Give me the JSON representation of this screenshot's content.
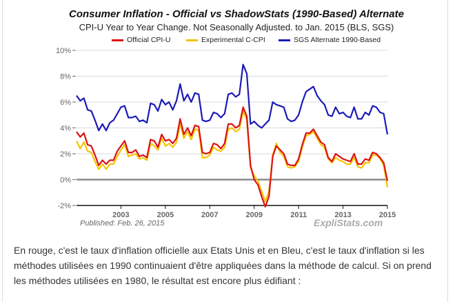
{
  "chart_data": {
    "type": "line",
    "title": "Consumer Inflation - Official vs ShadowStats (1990-Based) Alternate",
    "subtitle": "CPI-U Year to Year Change. Not Seasonally Adjusted. to Jan. 2015  (BLS, SGS)",
    "xlabel": "",
    "ylabel": "",
    "xlim": [
      2001.0,
      2015.0
    ],
    "ylim": [
      -2,
      10
    ],
    "grid": true,
    "legend_placement": "top",
    "yticks": [
      {
        "value": 10,
        "label": "10%"
      },
      {
        "value": 8,
        "label": "8%"
      },
      {
        "value": 6,
        "label": "6%"
      },
      {
        "value": 4,
        "label": "4%"
      },
      {
        "value": 2,
        "label": "2%"
      },
      {
        "value": 0,
        "label": "0%"
      },
      {
        "value": -2,
        "label": "-2%"
      }
    ],
    "xticks": [
      {
        "value": 2003,
        "label": "2003"
      },
      {
        "value": 2005,
        "label": "2005"
      },
      {
        "value": 2007,
        "label": "2007"
      },
      {
        "value": 2009,
        "label": "2009"
      },
      {
        "value": 2011,
        "label": "2011"
      },
      {
        "value": 2013,
        "label": "2013"
      },
      {
        "value": 2015,
        "label": "2015"
      }
    ],
    "x_step_years": 0.16667,
    "series": [
      {
        "name": "Official CPI-U",
        "color": "#dd1111",
        "values": [
          3.7,
          3.3,
          3.6,
          2.7,
          2.6,
          1.9,
          1.1,
          1.5,
          1.2,
          1.5,
          1.5,
          2.2,
          2.6,
          3.0,
          2.1,
          2.1,
          2.3,
          1.8,
          1.9,
          1.7,
          3.1,
          3.0,
          2.5,
          3.5,
          3.0,
          3.1,
          2.8,
          3.2,
          4.7,
          3.5,
          4.0,
          3.4,
          4.2,
          4.1,
          2.1,
          2.0,
          2.1,
          2.8,
          2.7,
          2.4,
          2.8,
          4.3,
          4.3,
          4.0,
          4.2,
          5.6,
          4.9,
          1.1,
          0.0,
          -0.4,
          -1.3,
          -2.1,
          -1.3,
          1.8,
          2.6,
          2.3,
          2.0,
          1.2,
          1.1,
          1.1,
          1.6,
          2.7,
          3.6,
          3.6,
          3.9,
          3.4,
          2.9,
          2.7,
          1.7,
          1.4,
          2.0,
          1.8,
          1.6,
          1.5,
          1.4,
          2.0,
          1.2,
          1.2,
          1.6,
          1.5,
          2.1,
          2.0,
          1.7,
          1.3,
          -0.1
        ]
      },
      {
        "name": "Experimental C-CPI",
        "color": "#f5c400",
        "values": [
          3.0,
          2.4,
          2.9,
          2.2,
          2.1,
          1.4,
          0.8,
          1.2,
          0.8,
          1.2,
          1.2,
          1.8,
          2.3,
          2.7,
          1.8,
          1.9,
          2.0,
          1.6,
          1.7,
          1.5,
          2.8,
          2.6,
          2.3,
          3.2,
          2.6,
          2.8,
          2.5,
          2.9,
          4.3,
          3.2,
          3.7,
          3.1,
          3.9,
          3.8,
          1.7,
          1.7,
          1.9,
          2.5,
          2.3,
          2.2,
          2.5,
          3.9,
          4.0,
          3.7,
          3.9,
          5.3,
          4.6,
          0.9,
          0.3,
          -0.1,
          -0.9,
          -1.7,
          -0.9,
          1.9,
          2.8,
          2.1,
          1.8,
          1.0,
          0.9,
          1.0,
          1.4,
          2.5,
          3.4,
          3.5,
          3.7,
          3.2,
          2.7,
          2.5,
          1.6,
          1.3,
          1.7,
          1.5,
          1.4,
          1.2,
          1.2,
          1.7,
          1.0,
          0.9,
          1.3,
          1.3,
          1.9,
          1.9,
          1.6,
          1.1,
          -0.6
        ]
      },
      {
        "name": "SGS  Alternate 1990-Based",
        "color": "#1a1ab8",
        "values": [
          6.5,
          6.1,
          6.3,
          5.4,
          5.3,
          4.6,
          3.8,
          4.3,
          3.8,
          4.4,
          4.6,
          5.1,
          5.6,
          5.7,
          4.8,
          4.8,
          4.9,
          4.5,
          4.6,
          4.4,
          5.9,
          5.8,
          5.3,
          6.2,
          5.8,
          6.0,
          5.4,
          6.1,
          7.4,
          6.1,
          6.6,
          6.0,
          6.7,
          6.6,
          4.6,
          4.5,
          4.6,
          5.2,
          5.1,
          4.8,
          5.1,
          6.6,
          6.7,
          6.4,
          6.6,
          8.9,
          8.2,
          4.3,
          4.5,
          4.2,
          4.0,
          4.3,
          4.6,
          6.0,
          5.8,
          5.7,
          5.6,
          4.7,
          4.5,
          4.6,
          5.0,
          6.0,
          6.8,
          7.0,
          7.2,
          6.5,
          6.1,
          5.8,
          5.0,
          4.9,
          5.6,
          5.1,
          5.2,
          4.9,
          4.8,
          5.6,
          4.7,
          4.7,
          5.2,
          5.0,
          5.7,
          5.6,
          5.2,
          5.1,
          3.5
        ]
      }
    ]
  },
  "legend": [
    {
      "label": "Official CPI-U",
      "color": "#dd1111"
    },
    {
      "label": "Experimental C-CPI",
      "color": "#f5c400"
    },
    {
      "label": "SGS  Alternate 1990-Based",
      "color": "#1a1ab8"
    }
  ],
  "published": "Published: Feb. 26, 2015",
  "brand": "ExpliStats.com",
  "article": {
    "paragraph": "En rouge, c'est le taux d'inflation officielle aux Etats Unis et en Bleu, c'est le taux d'inflation si les méthodes utilisées en 1990 continuaient d'être appliquées dans la méthode de calcul. Si on prend les méthodes utilisées en 1980, le résultat est encore plus édifiant :"
  }
}
